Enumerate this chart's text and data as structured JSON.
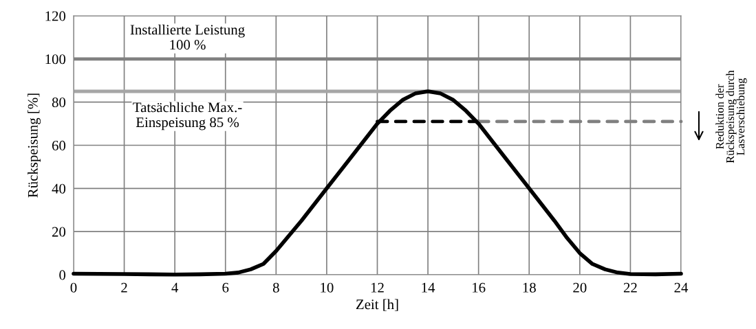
{
  "chart_data": {
    "type": "line",
    "xlabel": "Zeit [h]",
    "ylabel": "Rückspeisung [%]",
    "xlim": [
      0,
      24
    ],
    "xticks": [
      0,
      2,
      4,
      6,
      8,
      10,
      12,
      14,
      16,
      18,
      20,
      22,
      24
    ],
    "ylim": [
      0,
      120
    ],
    "yticks": [
      0,
      20,
      40,
      60,
      80,
      100,
      120
    ],
    "grid": true,
    "marker": "none",
    "series": [
      {
        "color": "#000000",
        "line_style": "solid",
        "x": [
          0,
          1,
          2,
          3,
          4,
          5,
          6,
          6.5,
          7,
          7.5,
          8,
          9,
          10,
          11,
          12,
          12.5,
          13,
          13.5,
          14,
          14.5,
          15,
          15.5,
          16,
          17,
          18,
          19,
          19.5,
          20,
          20.5,
          21,
          21.5,
          22,
          23,
          24
        ],
        "values": [
          0.5,
          0.4,
          0.3,
          0.2,
          0.1,
          0.2,
          0.5,
          1,
          2.5,
          5,
          11,
          25,
          40,
          55,
          70,
          76,
          81,
          84,
          85,
          84,
          81,
          76,
          70,
          55,
          40,
          25,
          17,
          10,
          5,
          2.5,
          1,
          0.3,
          0.2,
          0.5
        ]
      },
      {
        "color": "#000000",
        "line_style": "dashed",
        "x": [
          12,
          16
        ],
        "values": [
          71,
          71
        ]
      },
      {
        "color": "#808080",
        "line_style": "dashed",
        "x": [
          16,
          24
        ],
        "values": [
          71,
          71
        ]
      }
    ],
    "ref_lines": [
      {
        "axis": "y",
        "value": 100,
        "label": "Installierte Leistung\n100 %",
        "color": "#808080"
      },
      {
        "axis": "y",
        "value": 85,
        "label": "Tatsächliche Max.-\nEinspeisung 85 %",
        "color": "#a6a6a6"
      }
    ],
    "annotations": [
      "Reduktion der\nRückspeisung durch\nLasverschiebung"
    ]
  }
}
